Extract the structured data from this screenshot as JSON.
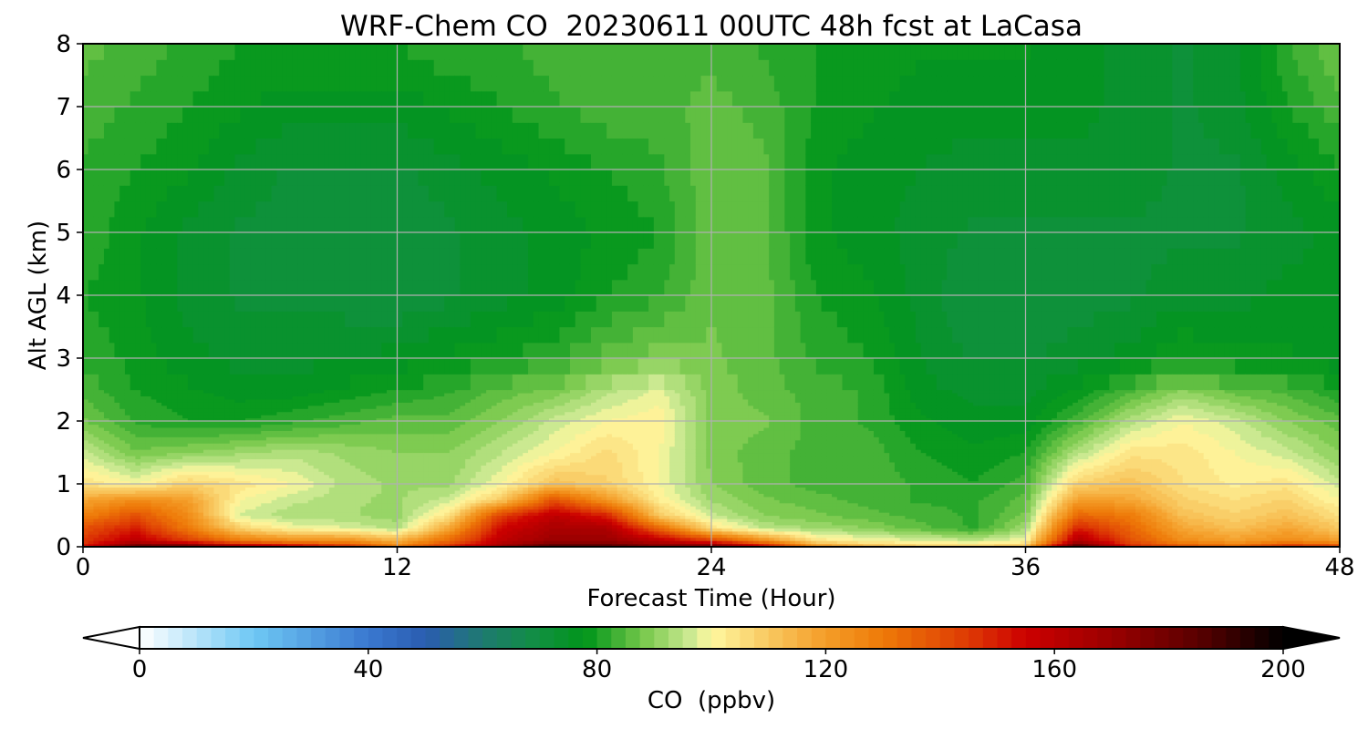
{
  "chart_data": {
    "type": "heatmap",
    "title": "WRF-Chem CO  20230611 00UTC 48h fcst at LaCasa",
    "xlabel": "Forecast Time (Hour)",
    "ylabel": "Alt AGL (km)",
    "xlim": [
      0,
      48
    ],
    "ylim": [
      0,
      8
    ],
    "x_ticks": [
      "0",
      "12",
      "24",
      "36",
      "48"
    ],
    "y_ticks": [
      "0",
      "1",
      "2",
      "3",
      "4",
      "5",
      "6",
      "7",
      "8"
    ],
    "grid": true,
    "colorbar": {
      "label": "CO  (ppbv)",
      "range": [
        0,
        200
      ],
      "ticks": [
        "0",
        "40",
        "80",
        "120",
        "160",
        "200"
      ],
      "extend": "both",
      "color_stops": [
        {
          "v": 0,
          "c": "#ffffff"
        },
        {
          "v": 20,
          "c": "#6ec8f4"
        },
        {
          "v": 40,
          "c": "#3a78d0"
        },
        {
          "v": 50,
          "c": "#2a5cb0"
        },
        {
          "v": 60,
          "c": "#1e7a70"
        },
        {
          "v": 70,
          "c": "#109040"
        },
        {
          "v": 78,
          "c": "#00951a"
        },
        {
          "v": 88,
          "c": "#76c84a"
        },
        {
          "v": 96,
          "c": "#c8e890"
        },
        {
          "v": 100,
          "c": "#fff8a0"
        },
        {
          "v": 110,
          "c": "#f8c860"
        },
        {
          "v": 120,
          "c": "#f49d28"
        },
        {
          "v": 130,
          "c": "#ee7a08"
        },
        {
          "v": 145,
          "c": "#de3a04"
        },
        {
          "v": 155,
          "c": "#cc0000"
        },
        {
          "v": 170,
          "c": "#9a0000"
        },
        {
          "v": 185,
          "c": "#5a0000"
        },
        {
          "v": 200,
          "c": "#000000"
        }
      ]
    },
    "hours": [
      0,
      2,
      4,
      6,
      8,
      10,
      12,
      14,
      16,
      18,
      20,
      22,
      24,
      26,
      28,
      30,
      32,
      34,
      36,
      38,
      40,
      42,
      44,
      46,
      48
    ],
    "levels_km": [
      0,
      0.1,
      0.3,
      0.5,
      0.75,
      1.0,
      1.5,
      2.0,
      2.5,
      3.0,
      4.0,
      5.0,
      6.0,
      7.0,
      8.0
    ],
    "values_ppbv": [
      [
        150,
        185,
        185,
        170,
        160,
        150,
        130,
        148,
        170,
        190,
        188,
        178,
        185,
        160,
        125,
        115,
        110,
        110,
        112,
        190,
        150,
        140,
        135,
        150,
        145
      ],
      [
        145,
        160,
        145,
        130,
        125,
        125,
        115,
        135,
        160,
        170,
        170,
        160,
        145,
        125,
        105,
        100,
        98,
        96,
        100,
        165,
        140,
        125,
        120,
        125,
        120
      ],
      [
        140,
        150,
        130,
        108,
        100,
        98,
        94,
        118,
        155,
        165,
        165,
        135,
        105,
        95,
        92,
        90,
        86,
        82,
        92,
        150,
        135,
        118,
        112,
        118,
        110
      ],
      [
        128,
        140,
        125,
        97,
        93,
        93,
        91,
        105,
        145,
        160,
        150,
        110,
        96,
        90,
        88,
        86,
        84,
        82,
        88,
        135,
        130,
        112,
        108,
        112,
        105
      ],
      [
        118,
        125,
        120,
        100,
        96,
        93,
        92,
        96,
        110,
        140,
        122,
        102,
        92,
        88,
        86,
        84,
        82,
        82,
        86,
        120,
        118,
        108,
        105,
        108,
        100
      ],
      [
        105,
        100,
        108,
        104,
        100,
        94,
        92,
        92,
        100,
        112,
        108,
        100,
        90,
        86,
        84,
        84,
        82,
        80,
        84,
        108,
        112,
        105,
        102,
        104,
        96
      ],
      [
        96,
        88,
        90,
        92,
        94,
        92,
        90,
        90,
        95,
        100,
        106,
        100,
        89,
        86,
        84,
        84,
        80,
        78,
        80,
        94,
        104,
        104,
        100,
        96,
        90
      ],
      [
        88,
        82,
        80,
        80,
        82,
        84,
        86,
        86,
        90,
        96,
        100,
        102,
        89,
        88,
        84,
        82,
        78,
        76,
        76,
        84,
        94,
        100,
        96,
        90,
        86
      ],
      [
        84,
        80,
        78,
        76,
        76,
        78,
        80,
        82,
        86,
        88,
        94,
        98,
        89,
        86,
        84,
        82,
        76,
        74,
        74,
        78,
        84,
        90,
        86,
        84,
        80
      ],
      [
        82,
        79,
        76,
        74,
        74,
        75,
        76,
        78,
        80,
        82,
        86,
        89,
        88,
        86,
        82,
        80,
        75,
        72,
        72,
        74,
        76,
        80,
        78,
        78,
        76
      ],
      [
        80,
        78,
        74,
        72,
        72,
        71,
        70,
        72,
        74,
        76,
        80,
        82,
        87,
        86,
        80,
        78,
        74,
        70,
        70,
        71,
        72,
        74,
        74,
        76,
        75
      ],
      [
        82,
        78,
        74,
        72,
        72,
        70,
        70,
        72,
        74,
        76,
        78,
        80,
        87,
        86,
        78,
        76,
        74,
        72,
        72,
        72,
        72,
        72,
        72,
        74,
        76
      ],
      [
        82,
        80,
        78,
        74,
        72,
        72,
        72,
        74,
        76,
        78,
        80,
        82,
        87,
        86,
        78,
        76,
        75,
        74,
        74,
        74,
        74,
        72,
        72,
        76,
        80
      ],
      [
        84,
        82,
        80,
        78,
        76,
        76,
        76,
        78,
        80,
        82,
        84,
        84,
        86,
        84,
        80,
        78,
        76,
        76,
        76,
        76,
        74,
        72,
        74,
        80,
        84
      ],
      [
        86,
        84,
        82,
        80,
        80,
        80,
        80,
        82,
        82,
        84,
        84,
        84,
        84,
        82,
        80,
        80,
        78,
        78,
        78,
        76,
        74,
        72,
        74,
        82,
        88
      ]
    ]
  }
}
